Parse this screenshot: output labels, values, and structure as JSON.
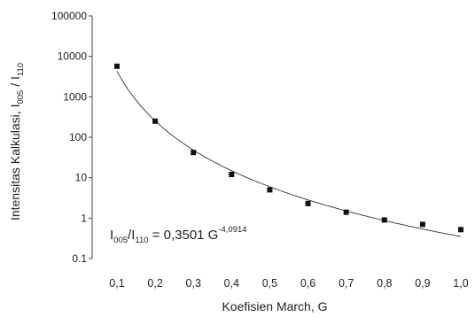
{
  "chart_data": {
    "type": "scatter",
    "xlabel": "Koefisien March, G",
    "ylabel": {
      "main": "Intensitas Kalkulasi, I",
      "sub1": "005",
      "sep": " / I",
      "sub2": "110"
    },
    "yscale": "log",
    "ylim": [
      0.1,
      100000
    ],
    "xlim": [
      0.1,
      1.0
    ],
    "y_tick_labels": [
      "100000",
      "10000",
      "1000",
      "100",
      "10",
      "1",
      "0.1"
    ],
    "y_tick_values": [
      100000,
      10000,
      1000,
      100,
      10,
      1,
      0.1
    ],
    "x_tick_labels": [
      "0,1",
      "0,2",
      "0,3",
      "0,4",
      "0,5",
      "0,6",
      "0,7",
      "0,8",
      "0,9",
      "1,0"
    ],
    "x_tick_values": [
      0.1,
      0.2,
      0.3,
      0.4,
      0.5,
      0.6,
      0.7,
      0.8,
      0.9,
      1.0
    ],
    "series": [
      {
        "x": [
          0.1,
          0.2,
          0.3,
          0.4,
          0.5,
          0.6,
          0.7,
          0.8,
          0.9,
          1.0
        ],
        "y": [
          5700,
          250,
          42,
          12,
          5,
          2.3,
          1.4,
          0.9,
          0.7,
          0.52
        ]
      }
    ],
    "fit": {
      "a": 0.3501,
      "b": -4.0914
    },
    "annotation": {
      "p1": "I",
      "s1": "005",
      "p2": "/I",
      "s2": "110",
      "p3": " = 0,3501 G",
      "sup": "-4,0914"
    },
    "grid": false
  }
}
